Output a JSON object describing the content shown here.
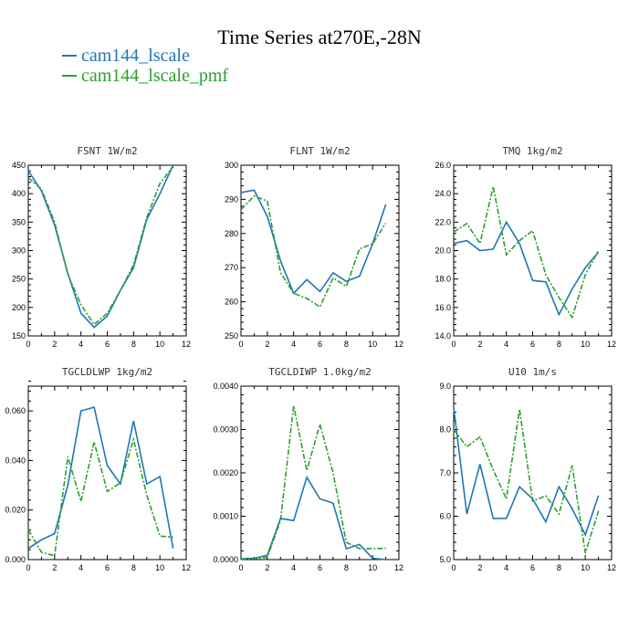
{
  "title": "Time Series at270E,-28N",
  "legend": [
    {
      "label": "cam144_lscale",
      "color": "#1f77b4",
      "dash": "solid"
    },
    {
      "label": "cam144_lscale_pmf",
      "color": "#2ca02c",
      "dash": "dashed"
    }
  ],
  "chart_data": [
    {
      "type": "line",
      "title": "FSNT  1W/m2",
      "x": [
        0,
        1,
        2,
        3,
        4,
        5,
        6,
        7,
        8,
        9,
        10,
        11
      ],
      "xlim": [
        0,
        12
      ],
      "xticks": [
        "0",
        "2",
        "4",
        "6",
        "8",
        "10",
        "12"
      ],
      "ylim": [
        150,
        450
      ],
      "yticks": [
        "150",
        "200",
        "250",
        "300",
        "350",
        "400",
        "450"
      ],
      "series": [
        {
          "name": "cam144_lscale",
          "values": [
            440,
            405,
            345,
            260,
            190,
            165,
            185,
            230,
            270,
            355,
            400,
            450
          ]
        },
        {
          "name": "cam144_lscale_pmf",
          "values": [
            428,
            408,
            350,
            258,
            205,
            170,
            190,
            230,
            275,
            358,
            418,
            448
          ]
        }
      ]
    },
    {
      "type": "line",
      "title": "FLNT  1W/m2",
      "x": [
        0,
        1,
        2,
        3,
        4,
        5,
        6,
        7,
        8,
        9,
        10,
        11
      ],
      "xlim": [
        0,
        12
      ],
      "xticks": [
        "0",
        "2",
        "4",
        "6",
        "8",
        "10",
        "12"
      ],
      "ylim": [
        250,
        300
      ],
      "yticks": [
        "250",
        "260",
        "270",
        "280",
        "290",
        "300"
      ],
      "series": [
        {
          "name": "cam144_lscale",
          "values": [
            292,
            292.7,
            285,
            272,
            262.5,
            266.5,
            263,
            268.5,
            266,
            267.5,
            277,
            288.5
          ]
        },
        {
          "name": "cam144_lscale_pmf",
          "values": [
            287,
            291,
            289.5,
            268.5,
            262.5,
            261,
            258.5,
            267,
            264.5,
            275.5,
            277,
            283
          ]
        }
      ]
    },
    {
      "type": "line",
      "title": "TMQ  1kg/m2",
      "x": [
        0,
        1,
        2,
        3,
        4,
        5,
        6,
        7,
        8,
        9,
        10,
        11
      ],
      "xlim": [
        0,
        12
      ],
      "xticks": [
        "0",
        "2",
        "4",
        "6",
        "8",
        "10",
        "12"
      ],
      "ylim": [
        14.0,
        26.0
      ],
      "yticks": [
        "14.0",
        "16.0",
        "18.0",
        "20.0",
        "22.0",
        "24.0",
        "26.0"
      ],
      "series": [
        {
          "name": "cam144_lscale",
          "values": [
            20.5,
            20.7,
            20.0,
            20.1,
            22.0,
            20.5,
            17.9,
            17.8,
            15.5,
            17.3,
            18.8,
            19.9
          ]
        },
        {
          "name": "cam144_lscale_pmf",
          "values": [
            21.3,
            21.9,
            20.5,
            24.5,
            19.7,
            20.7,
            21.4,
            18.3,
            16.7,
            15.3,
            18.3,
            20.0
          ]
        }
      ]
    },
    {
      "type": "line",
      "title": "TGCLDLWP  1kg/m2",
      "x": [
        0,
        1,
        2,
        3,
        4,
        5,
        6,
        7,
        8,
        9,
        10,
        11
      ],
      "xlim": [
        0,
        12
      ],
      "xticks": [
        "0",
        "2",
        "4",
        "6",
        "8",
        "10",
        "12"
      ],
      "ylim": [
        0.0,
        0.07
      ],
      "yticks": [
        "0.000",
        "0.020",
        "0.040",
        "0.060"
      ],
      "series": [
        {
          "name": "cam144_lscale",
          "values": [
            0.0045,
            0.008,
            0.0105,
            0.03,
            0.06,
            0.0615,
            0.038,
            0.0305,
            0.056,
            0.0305,
            0.0335,
            0.0045
          ]
        },
        {
          "name": "cam144_lscale_pmf",
          "values": [
            0.012,
            0.003,
            0.0015,
            0.0415,
            0.0235,
            0.0475,
            0.0275,
            0.031,
            0.0485,
            0.026,
            0.0095,
            0.009
          ]
        }
      ]
    },
    {
      "type": "line",
      "title": "TGCLDIWP  1.0kg/m2",
      "x": [
        0,
        1,
        2,
        3,
        4,
        5,
        6,
        7,
        8,
        9,
        10,
        11
      ],
      "xlim": [
        0,
        12
      ],
      "xticks": [
        "0",
        "2",
        "4",
        "6",
        "8",
        "10",
        "12"
      ],
      "ylim": [
        0.0,
        0.004
      ],
      "yticks": [
        "0.0000",
        "0.0010",
        "0.0020",
        "0.0030",
        "0.0040"
      ],
      "series": [
        {
          "name": "cam144_lscale",
          "values": [
            2e-05,
            3e-05,
            0.0001,
            0.00095,
            0.0009,
            0.0019,
            0.0014,
            0.0013,
            0.00025,
            0.00035,
            3e-05,
            0.0
          ]
        },
        {
          "name": "cam144_lscale_pmf",
          "values": [
            1e-05,
            2e-05,
            5e-05,
            0.0009,
            0.00355,
            0.00205,
            0.00312,
            0.002,
            0.0004,
            0.00025,
            0.00025,
            0.00026
          ]
        }
      ]
    },
    {
      "type": "line",
      "title": "U10  1m/s",
      "x": [
        0,
        1,
        2,
        3,
        4,
        5,
        6,
        7,
        8,
        9,
        10,
        11
      ],
      "xlim": [
        0,
        12
      ],
      "xticks": [
        "0",
        "2",
        "4",
        "6",
        "8",
        "10",
        "12"
      ],
      "ylim": [
        5.0,
        9.0
      ],
      "yticks": [
        "5.0",
        "6.0",
        "7.0",
        "8.0",
        "9.0"
      ],
      "series": [
        {
          "name": "cam144_lscale",
          "values": [
            8.5,
            6.05,
            7.2,
            5.95,
            5.95,
            6.68,
            6.4,
            5.87,
            6.68,
            6.17,
            5.57,
            6.48
          ]
        },
        {
          "name": "cam144_lscale_pmf",
          "values": [
            8.0,
            7.6,
            7.83,
            7.07,
            6.4,
            8.47,
            6.35,
            6.47,
            6.05,
            7.17,
            5.15,
            6.12
          ]
        }
      ]
    }
  ]
}
